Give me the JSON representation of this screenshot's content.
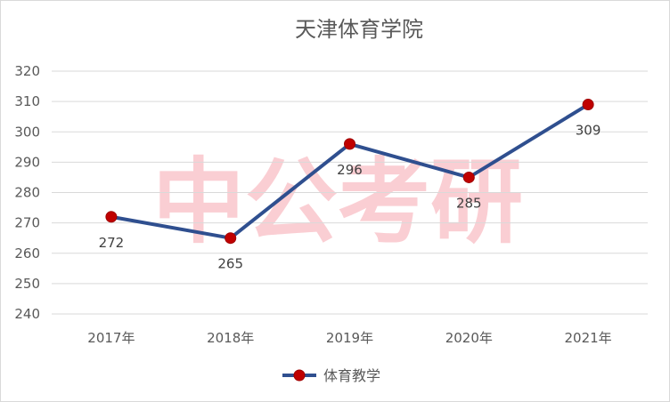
{
  "chart_data": {
    "type": "line",
    "title": "天津体育学院",
    "categories": [
      "2017年",
      "2018年",
      "2019年",
      "2020年",
      "2021年"
    ],
    "series": [
      {
        "name": "体育教学",
        "values": [
          272,
          265,
          296,
          285,
          309
        ]
      }
    ],
    "ylim": [
      240,
      320
    ],
    "yticks": [
      240,
      250,
      260,
      270,
      280,
      290,
      300,
      310,
      320
    ],
    "grid": true,
    "legend": "bottom",
    "data_labels": [
      "272",
      "265",
      "296",
      "285",
      "309"
    ],
    "colors": {
      "line": "#2f4f8f",
      "marker": "#c00000",
      "grid": "#d9d9d9"
    }
  },
  "watermark": "中公考研"
}
